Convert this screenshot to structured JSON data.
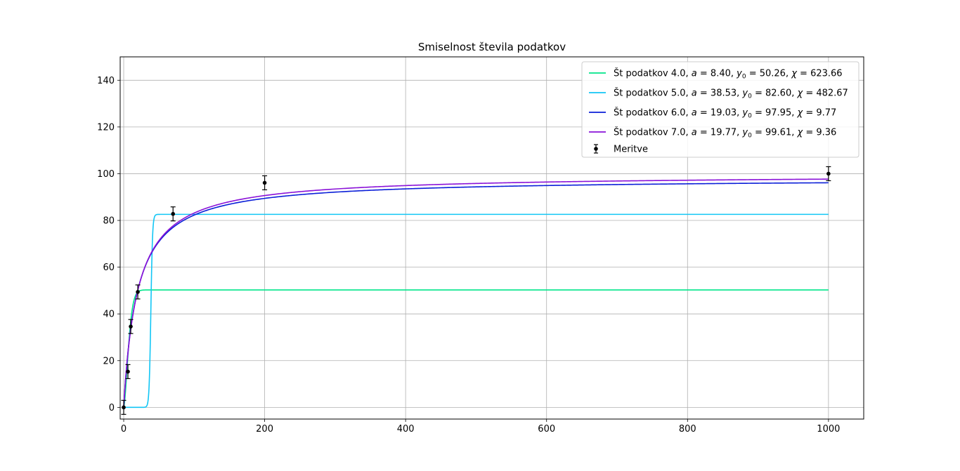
{
  "chart_data": {
    "type": "line",
    "title": "Smiselnost števila podatkov",
    "xlabel": "",
    "ylabel": "",
    "xlim": [
      -5,
      1050
    ],
    "ylim": [
      -5,
      150
    ],
    "x_ticks": [
      0,
      200,
      400,
      600,
      800,
      1000
    ],
    "y_ticks": [
      0,
      20,
      40,
      60,
      80,
      100,
      120,
      140
    ],
    "grid": true,
    "legend_position": "top-right",
    "series": [
      {
        "name": "Št podatkov 4.0, $a = 8.40, y_0 = 50.26, \\chi = 623.66$",
        "legend": {
          "prefix": "Št podatkov 4.0, ",
          "a": "8.40",
          "y0": "50.26",
          "chi": "623.66"
        },
        "color": "#00e58a",
        "a": 8.4,
        "y0": 50.26,
        "x_range": [
          0,
          1000
        ]
      },
      {
        "name": "Št podatkov 5.0, $a = 38.53, y_0 = 82.60, \\chi = 482.67$",
        "legend": {
          "prefix": "Št podatkov 5.0, ",
          "a": "38.53",
          "y0": "82.60",
          "chi": "482.67"
        },
        "color": "#12c6f5",
        "a": 38.53,
        "y0": 82.6,
        "x_range": [
          0,
          1000
        ]
      },
      {
        "name": "Št podatkov 6.0, $a = 19.03, y_0 = 97.95, \\chi = 9.77$",
        "legend": {
          "prefix": "Št podatkov 6.0, ",
          "a": "19.03",
          "y0": "97.95",
          "chi": "9.77"
        },
        "color": "#0a1ed8",
        "a": 19.03,
        "y0": 97.95,
        "x_range": [
          0,
          1000
        ]
      },
      {
        "name": "Št podatkov 7.0, $a = 19.77, y_0 = 99.61, \\chi = 9.36$",
        "legend": {
          "prefix": "Št podatkov 7.0, ",
          "a": "19.77",
          "y0": "99.61",
          "chi": "9.36"
        },
        "color": "#8a12d8",
        "a": 19.77,
        "y0": 99.61,
        "x_range": [
          0,
          1000
        ]
      }
    ],
    "measurements": {
      "name": "Meritve",
      "color": "#000000",
      "x": [
        0,
        6,
        10,
        20,
        70,
        200,
        1000
      ],
      "y": [
        0,
        15.3,
        34.6,
        49.4,
        82.8,
        96.1,
        100.0
      ],
      "err": [
        3.0,
        3.0,
        3.0,
        3.0,
        3.0,
        3.0,
        3.0
      ]
    }
  }
}
